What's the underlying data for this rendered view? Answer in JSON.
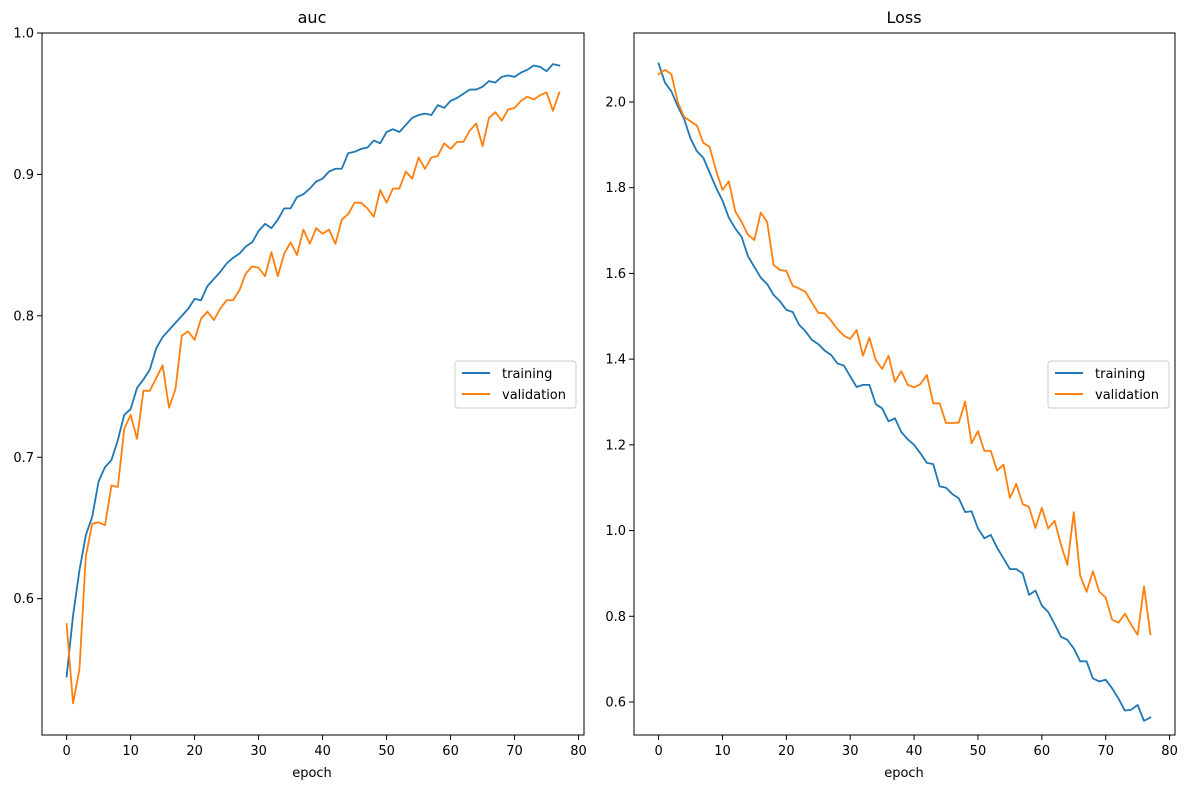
{
  "colors": {
    "training": "#1f77b4",
    "validation": "#ff7f0e"
  },
  "chart_data": [
    {
      "type": "line",
      "title": "auc",
      "xlabel": "epoch",
      "ylabel": "",
      "xlim": [
        -3.85,
        80.85
      ],
      "ylim": [
        0.5036,
        1.0
      ],
      "xticks": [
        0,
        10,
        20,
        30,
        40,
        50,
        60,
        70,
        80
      ],
      "xtick_labels": [
        "0",
        "10",
        "20",
        "30",
        "40",
        "50",
        "60",
        "70",
        "80"
      ],
      "yticks": [
        0.6,
        0.7,
        0.8,
        0.9,
        1.0
      ],
      "ytick_labels": [
        "0.6",
        "0.7",
        "0.8",
        "0.9",
        "1.0"
      ],
      "grid": false,
      "legend_position": "right",
      "series": [
        {
          "name": "training",
          "values": [
            0.545,
            0.588,
            0.62,
            0.645,
            0.658,
            0.683,
            0.693,
            0.698,
            0.712,
            0.73,
            0.734,
            0.749,
            0.755,
            0.762,
            0.777,
            0.785,
            0.79,
            0.795,
            0.8,
            0.805,
            0.812,
            0.811,
            0.821,
            0.826,
            0.831,
            0.837,
            0.841,
            0.844,
            0.849,
            0.852,
            0.86,
            0.865,
            0.862,
            0.868,
            0.876,
            0.876,
            0.884,
            0.886,
            0.89,
            0.895,
            0.897,
            0.902,
            0.904,
            0.904,
            0.915,
            0.916,
            0.918,
            0.919,
            0.924,
            0.922,
            0.93,
            0.932,
            0.93,
            0.935,
            0.94,
            0.942,
            0.943,
            0.942,
            0.949,
            0.947,
            0.952,
            0.954,
            0.957,
            0.96,
            0.96,
            0.962,
            0.966,
            0.965,
            0.969,
            0.97,
            0.969,
            0.972,
            0.974,
            0.977,
            0.976,
            0.973,
            0.978,
            0.977
          ]
        },
        {
          "name": "validation",
          "values": [
            0.582,
            0.526,
            0.55,
            0.63,
            0.653,
            0.654,
            0.652,
            0.68,
            0.679,
            0.72,
            0.73,
            0.713,
            0.747,
            0.747,
            0.756,
            0.765,
            0.735,
            0.748,
            0.786,
            0.789,
            0.783,
            0.798,
            0.803,
            0.797,
            0.805,
            0.811,
            0.811,
            0.818,
            0.83,
            0.835,
            0.834,
            0.828,
            0.845,
            0.828,
            0.844,
            0.852,
            0.843,
            0.861,
            0.851,
            0.862,
            0.858,
            0.861,
            0.851,
            0.868,
            0.872,
            0.88,
            0.88,
            0.876,
            0.87,
            0.889,
            0.88,
            0.89,
            0.89,
            0.902,
            0.897,
            0.912,
            0.904,
            0.912,
            0.913,
            0.922,
            0.918,
            0.923,
            0.923,
            0.931,
            0.936,
            0.92,
            0.94,
            0.944,
            0.938,
            0.946,
            0.947,
            0.952,
            0.955,
            0.953,
            0.956,
            0.958,
            0.945,
            0.958
          ]
        }
      ]
    },
    {
      "type": "line",
      "title": "Loss",
      "xlabel": "epoch",
      "ylabel": "",
      "xlim": [
        -3.85,
        80.85
      ],
      "ylim": [
        0.523,
        2.161
      ],
      "xticks": [
        0,
        10,
        20,
        30,
        40,
        50,
        60,
        70,
        80
      ],
      "xtick_labels": [
        "0",
        "10",
        "20",
        "30",
        "40",
        "50",
        "60",
        "70",
        "80"
      ],
      "yticks": [
        0.6,
        0.8,
        1.0,
        1.2,
        1.4,
        1.6,
        1.8,
        2.0
      ],
      "ytick_labels": [
        "0.6",
        "0.8",
        "1.0",
        "1.2",
        "1.4",
        "1.6",
        "1.8",
        "2.0"
      ],
      "grid": false,
      "legend_position": "right",
      "series": [
        {
          "name": "training",
          "values": [
            2.09,
            2.045,
            2.025,
            1.99,
            1.96,
            1.915,
            1.885,
            1.87,
            1.835,
            1.8,
            1.77,
            1.73,
            1.705,
            1.685,
            1.64,
            1.615,
            1.59,
            1.575,
            1.55,
            1.535,
            1.515,
            1.51,
            1.48,
            1.465,
            1.445,
            1.435,
            1.42,
            1.41,
            1.39,
            1.385,
            1.36,
            1.335,
            1.34,
            1.34,
            1.295,
            1.285,
            1.255,
            1.262,
            1.23,
            1.213,
            1.2,
            1.18,
            1.158,
            1.155,
            1.103,
            1.1,
            1.085,
            1.075,
            1.043,
            1.045,
            1.005,
            0.982,
            0.99,
            0.96,
            0.935,
            0.91,
            0.91,
            0.9,
            0.85,
            0.86,
            0.825,
            0.81,
            0.782,
            0.752,
            0.745,
            0.725,
            0.695,
            0.695,
            0.655,
            0.648,
            0.652,
            0.632,
            0.608,
            0.58,
            0.582,
            0.593,
            0.556,
            0.564
          ]
        },
        {
          "name": "validation",
          "values": [
            2.065,
            2.075,
            2.065,
            2.0,
            1.965,
            1.955,
            1.945,
            1.905,
            1.895,
            1.84,
            1.795,
            1.815,
            1.745,
            1.72,
            1.69,
            1.678,
            1.742,
            1.72,
            1.62,
            1.608,
            1.606,
            1.571,
            1.565,
            1.557,
            1.532,
            1.508,
            1.507,
            1.49,
            1.47,
            1.455,
            1.447,
            1.468,
            1.408,
            1.45,
            1.398,
            1.377,
            1.408,
            1.347,
            1.372,
            1.34,
            1.334,
            1.342,
            1.363,
            1.297,
            1.297,
            1.251,
            1.251,
            1.252,
            1.301,
            1.204,
            1.232,
            1.186,
            1.186,
            1.14,
            1.154,
            1.076,
            1.109,
            1.062,
            1.055,
            1.006,
            1.053,
            1.005,
            1.023,
            0.967,
            0.92,
            1.043,
            0.895,
            0.857,
            0.905,
            0.857,
            0.844,
            0.792,
            0.785,
            0.806,
            0.78,
            0.757,
            0.87,
            0.758
          ]
        }
      ]
    }
  ]
}
